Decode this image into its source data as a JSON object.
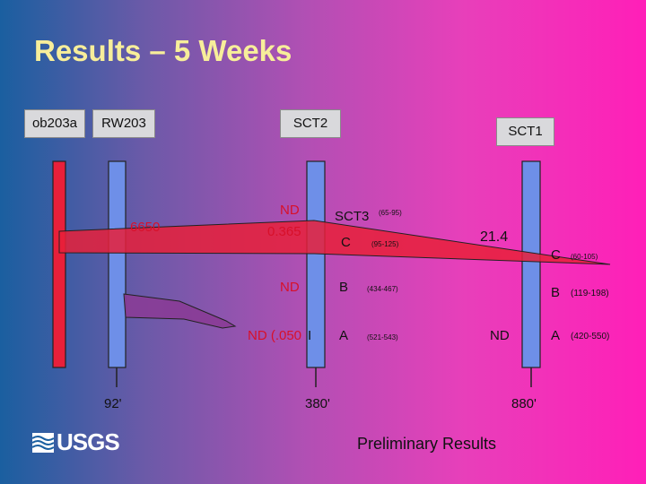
{
  "title": "Results – 5 Weeks",
  "wells": {
    "ob203a": "ob203a",
    "rw203": "RW203",
    "sct2": "SCT2",
    "sct1": "SCT1"
  },
  "distances": {
    "d1": "92'",
    "d2": "380'",
    "d3": "880'"
  },
  "rw203_value": "6650",
  "sct2_values": {
    "nd1": "ND",
    "val": "0.365",
    "nd2": "ND",
    "nd3": "ND (.050",
    "nd3_trail": "I"
  },
  "sct3": {
    "label": "SCT3",
    "range": "(65-95)"
  },
  "sct2_layers": [
    {
      "letter": "C",
      "range": "(95-125)"
    },
    {
      "letter": "B",
      "range": "(434-467)"
    },
    {
      "letter": "A",
      "range": "(521-543)"
    }
  ],
  "sct1_values": {
    "val": "21.4",
    "nd": "ND"
  },
  "sct1_layers": [
    {
      "letter": "C",
      "range": "(60-105)"
    },
    {
      "letter": "B",
      "range": "(119-198)"
    },
    {
      "letter": "A",
      "range": "(420-550)"
    }
  ],
  "logo": "USGS",
  "footer": "Preliminary Results",
  "colors": {
    "title": "#f7ee9a",
    "well_blue": "#6e8fe8",
    "well_red": "#e8203a",
    "plume_red": "#e8203a",
    "plume_purple": "#8a3c96"
  }
}
